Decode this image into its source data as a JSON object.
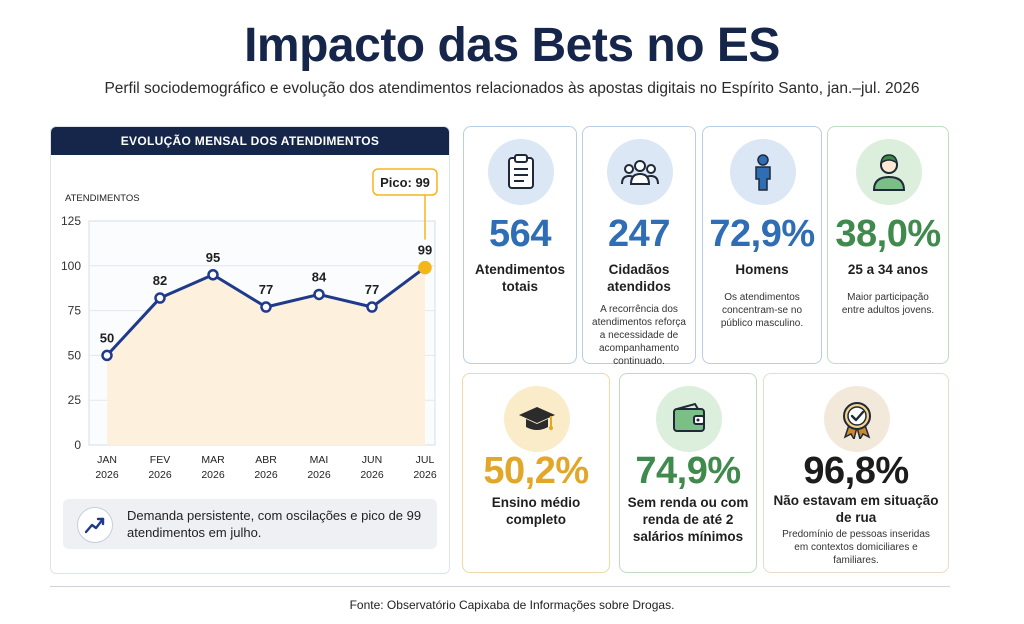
{
  "title": "Impacto das Bets no ES",
  "subtitle": "Perfil sociodemográfico e evolução dos atendimentos relacionados às apostas digitais no Espírito Santo, jan.–jul. 2026",
  "chart": {
    "header": "EVOLUÇÃO MENSAL DOS ATENDIMENTOS",
    "peak_label": "Pico: 99",
    "note": "Demanda persistente, com oscilações e pico de 99 atendimentos em julho."
  },
  "chart_data": {
    "type": "line",
    "title": "EVOLUÇÃO MENSAL DOS ATENDIMENTOS",
    "ylabel": "ATENDIMENTOS",
    "xlabel": "",
    "categories": [
      [
        "JAN",
        "2026"
      ],
      [
        "FEV",
        "2026"
      ],
      [
        "MAR",
        "2026"
      ],
      [
        "ABR",
        "2026"
      ],
      [
        "MAI",
        "2026"
      ],
      [
        "JUN",
        "2026"
      ],
      [
        "JUL",
        "2026"
      ]
    ],
    "values": [
      50,
      82,
      95,
      77,
      84,
      77,
      99
    ],
    "data_labels": [
      "50",
      "82",
      "95",
      "77",
      "84",
      "77",
      "99"
    ],
    "ylim": [
      0,
      125
    ],
    "yticks": [
      "0",
      "25",
      "50",
      "75",
      "100",
      "125"
    ],
    "grid": true,
    "line_color": "#1e3a8a",
    "area_color": "#fdf1de",
    "peak_color": "#f5b61a"
  },
  "cards": [
    {
      "value": "564",
      "label": "Atendimentos totais",
      "desc": "",
      "icon": "clipboard-icon",
      "color": "#2f6db5"
    },
    {
      "value": "247",
      "label": "Cidadãos atendidos",
      "desc": "A recorrência dos atendimentos reforça a necessidade de acompanhamento continuado.",
      "icon": "people-group-icon",
      "color": "#2f6db5"
    },
    {
      "value": "72,9%",
      "label": "Homens",
      "desc": "Os atendimentos concentram-se no público masculino.",
      "icon": "man-icon",
      "color": "#2f6db5"
    },
    {
      "value": "38,0%",
      "label": "25 a 34 anos",
      "desc": "Maior participação entre adultos jovens.",
      "icon": "young-adult-icon",
      "color": "#3f8a4c"
    },
    {
      "value": "50,2%",
      "label": "Ensino médio completo",
      "desc": "",
      "icon": "graduation-cap-icon",
      "color": "#e2a728"
    },
    {
      "value": "74,9%",
      "label": "Sem renda ou com renda de até 2 salários mínimos",
      "desc": "",
      "icon": "wallet-icon",
      "color": "#3f8a4c"
    },
    {
      "value": "96,8%",
      "label": "Não estavam em situação de rua",
      "desc": "Predomínio de pessoas inseridas em contextos domiciliares e familiares.",
      "icon": "award-badge-icon",
      "color": "#1c1c1c"
    }
  ],
  "footer": "Fonte: Observatório Capixaba de Informações sobre Drogas."
}
